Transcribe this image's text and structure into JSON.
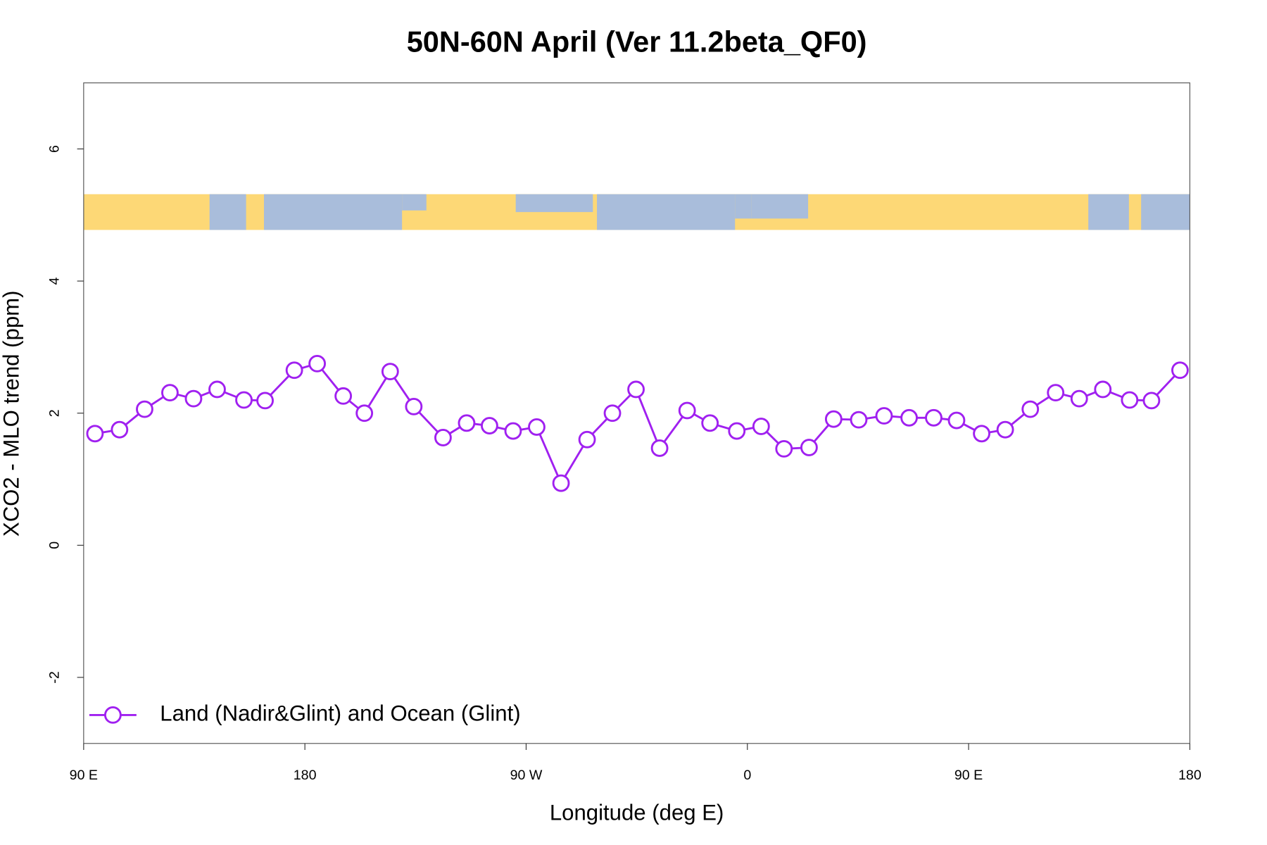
{
  "chart_data": {
    "type": "line",
    "title": "50N-60N April (Ver 11.2beta_QF0)",
    "x_label": "Longitude (deg E)",
    "y_label": "XCO2 - MLO trend (ppm)",
    "xlim": [
      90,
      540
    ],
    "ylim": [
      -3,
      7
    ],
    "xticks": [
      {
        "value": 90,
        "label": "90 E"
      },
      {
        "value": 180,
        "label": "180"
      },
      {
        "value": 270,
        "label": "90 W"
      },
      {
        "value": 360,
        "label": "0"
      },
      {
        "value": 450,
        "label": "90 E"
      },
      {
        "value": 540,
        "label": "180"
      }
    ],
    "yticks": [
      -2,
      0,
      2,
      4,
      6
    ],
    "legend_position": "bottom-left",
    "x": [
      94.6,
      104.6,
      114.8,
      125.1,
      134.7,
      144.3,
      155.2,
      163.8,
      175.7,
      185,
      195.6,
      204.2,
      214.7,
      224.3,
      236.2,
      245.8,
      255.1,
      264.7,
      274.3,
      284.2,
      294.8,
      305.1,
      314.7,
      324.3,
      335.5,
      344.8,
      355.7,
      365.6,
      374.9,
      385.1,
      395.1,
      405.3,
      415.6,
      425.8,
      435.8,
      445.1,
      455.3,
      464.9,
      475.1,
      485.4,
      495,
      504.6,
      515.5,
      524.4,
      536
    ],
    "series": [
      {
        "name": "Land (Nadir&Glint) and Ocean (Glint)",
        "color": "#a020f0",
        "values": [
          1.69,
          1.75,
          2.06,
          2.31,
          2.22,
          2.36,
          2.2,
          2.19,
          2.65,
          2.75,
          2.26,
          2.0,
          2.63,
          2.1,
          1.63,
          1.85,
          1.81,
          1.73,
          1.79,
          0.94,
          1.6,
          2.0,
          2.36,
          1.47,
          2.04,
          1.85,
          1.73,
          1.8,
          1.46,
          1.48,
          1.91,
          1.9,
          1.96,
          1.93,
          1.93,
          1.89,
          1.69,
          1.75,
          2.06,
          2.31,
          2.22,
          2.36,
          2.2,
          2.19,
          2.65
        ]
      }
    ]
  }
}
